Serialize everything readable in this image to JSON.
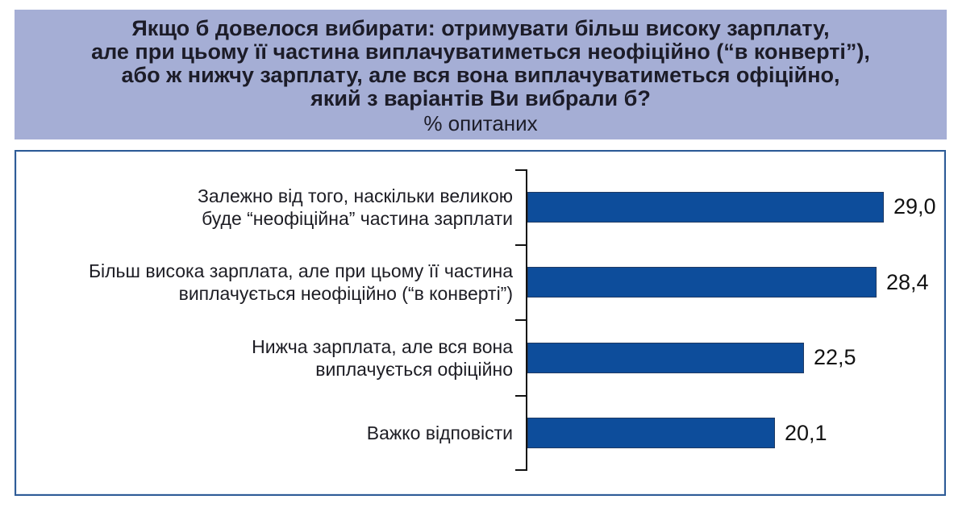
{
  "header": {
    "title_lines": [
      "Якщо б довелося вибирати: отримувати більш високу зарплату,",
      "але при цьому її частина виплачуватиметься неофіційно (“в конверті”),",
      "або ж нижчу зарплату, але вся вона виплачуватиметься офіційно,",
      "який з варіантів Ви вибрали б?"
    ],
    "subtitle": "% опитаних"
  },
  "colors": {
    "title_bg": "#a5aed5",
    "title_text": "#1c1c28",
    "bar": "#0d4d9b",
    "bar_border": "#1f3a64",
    "chart_border": "#2e5c97",
    "axis": "#121212"
  },
  "chart_data": {
    "type": "bar",
    "orientation": "horizontal",
    "title": "Якщо б довелося вибирати: отримувати більш високу зарплату, але при цьому її частина виплачуватиметься неофіційно (“в конверті”), або ж нижчу зарплату, але вся вона виплачуватиметься офіційно, який з варіантів Ви вибрали б?",
    "subtitle": "% опитаних",
    "unit": "%",
    "categories": [
      "Залежно від того, наскільки великою буде “неофіційна” частина зарплати",
      "Більш висока зарплата, але при цьому її частина виплачується неофіційно (“в конверті”)",
      "Нижча зарплата, але вся вона виплачується офіційно",
      "Важко відповісти"
    ],
    "category_lines": [
      [
        "Залежно від того, наскільки великою",
        "буде “неофіційна” частина зарплати"
      ],
      [
        "Більш висока зарплата, але при цьому її частина",
        "виплачується неофіційно (“в конверті”)"
      ],
      [
        "Нижча зарплата, але вся вона",
        "виплачується офіційно"
      ],
      [
        "Важко відповісти"
      ]
    ],
    "values": [
      29.0,
      28.4,
      22.5,
      20.1
    ],
    "value_labels": [
      "29,0",
      "28,4",
      "22,5",
      "20,1"
    ],
    "xlim": [
      0,
      32
    ],
    "grid": false,
    "legend": false,
    "value_label_position": "right-of-bar"
  }
}
